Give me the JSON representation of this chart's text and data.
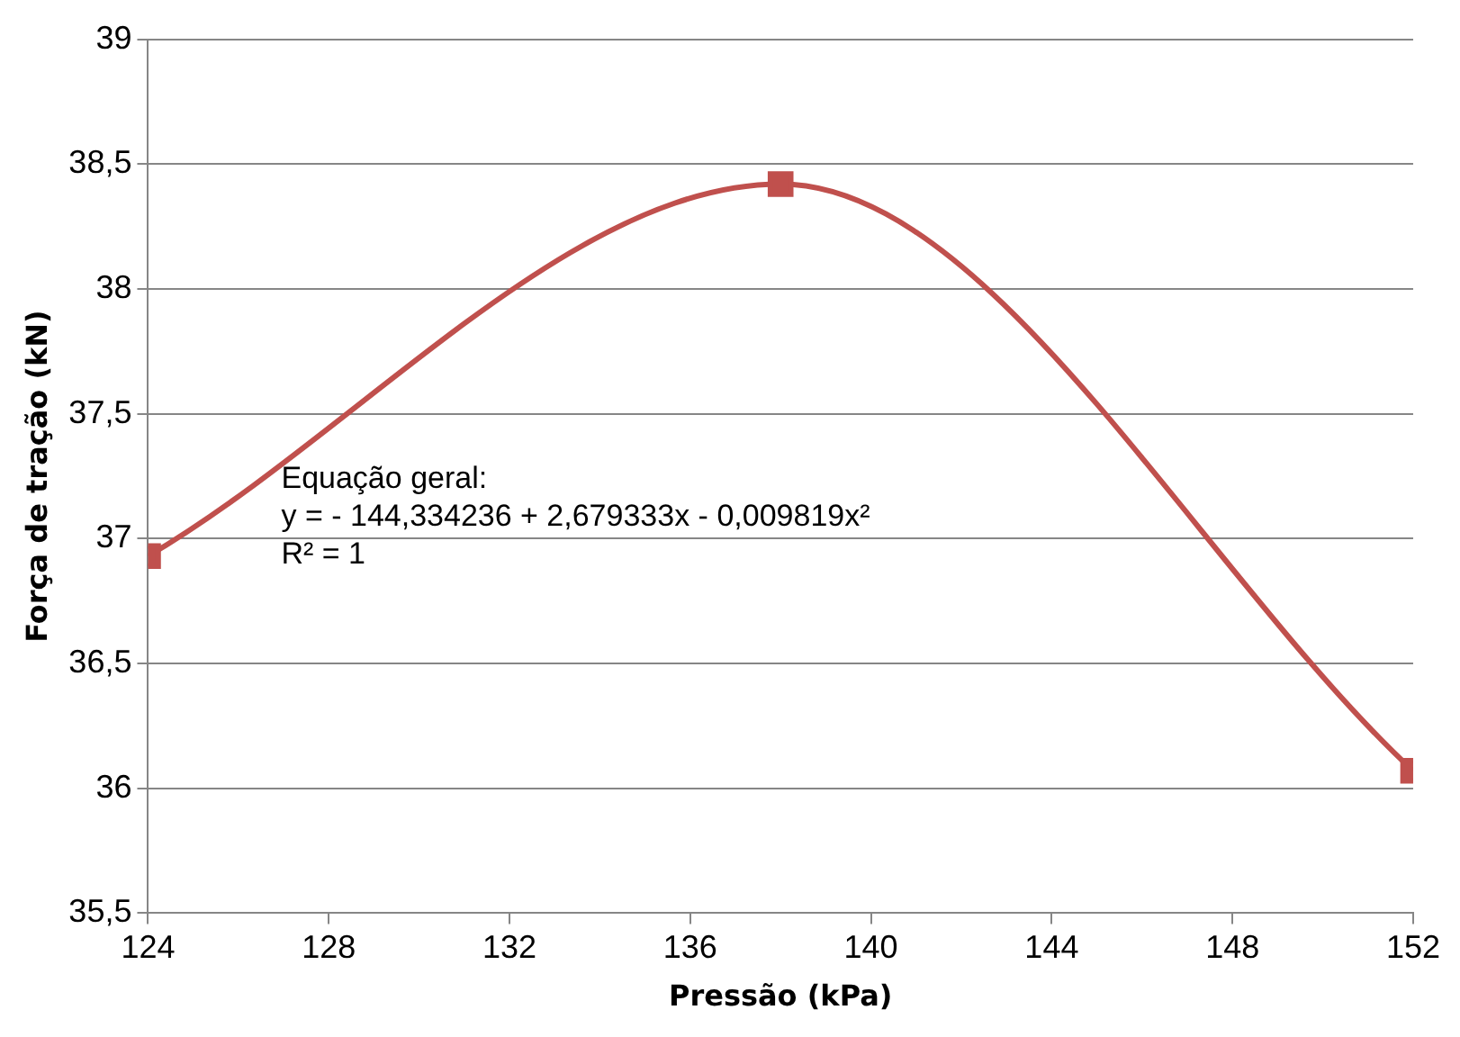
{
  "chart_data": {
    "type": "line",
    "xlabel": "Pressão (kPa)",
    "ylabel": "Força de tração (kN)",
    "x": [
      124,
      138,
      152
    ],
    "series": [
      {
        "color": "#c0504d",
        "values": [
          36.93,
          38.42,
          36.07
        ]
      }
    ],
    "xlim": [
      124,
      152
    ],
    "xticks": [
      124,
      128,
      132,
      136,
      140,
      144,
      148,
      152
    ],
    "ylim": [
      35.5,
      39
    ],
    "yticks": [
      {
        "value": 35.5,
        "label": "35,5"
      },
      36,
      {
        "value": 36.5,
        "label": "36,5"
      },
      37,
      {
        "value": 37.5,
        "label": "37,5"
      },
      38,
      {
        "value": 38.5,
        "label": "38,5"
      },
      39
    ],
    "grid": "y",
    "marker": "square",
    "legend": false,
    "annotations": [
      "Equação geral:",
      "y = - 144,334236 + 2,679333x - 0,009819x²",
      "R² = 1"
    ]
  }
}
